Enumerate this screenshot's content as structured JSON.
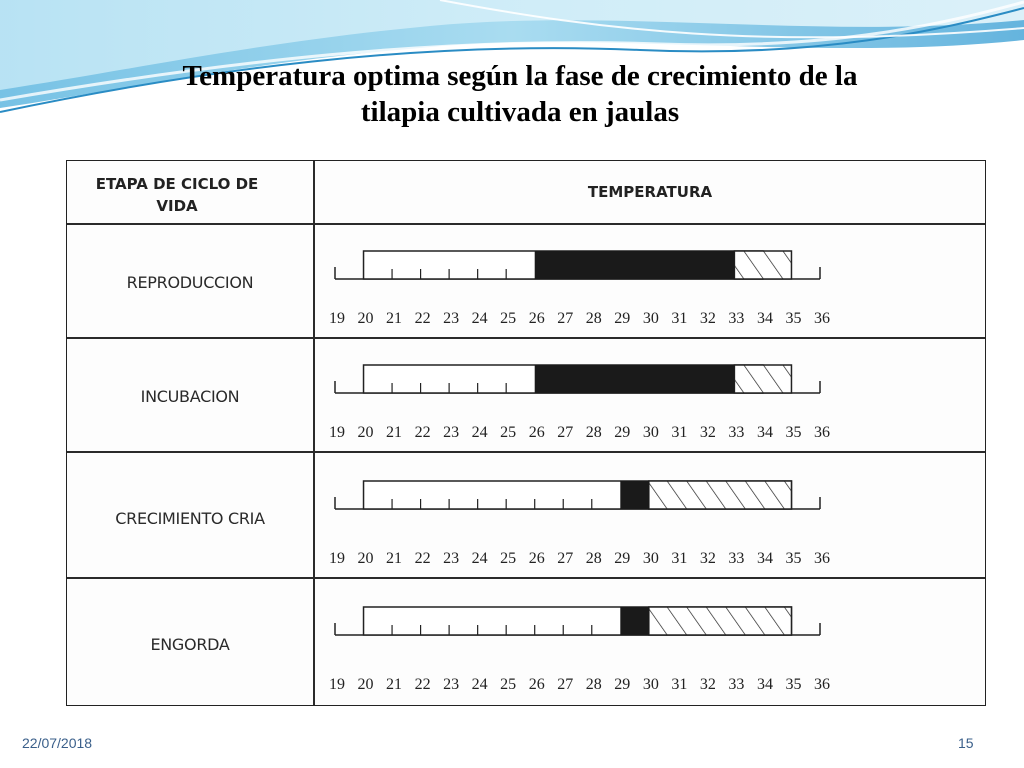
{
  "slide": {
    "title_line1": "Temperatura optima según la fase de crecimiento de la",
    "title_line2": "tilapia cultivada en jaulas",
    "date": "22/07/2018",
    "page_number": "15"
  },
  "table": {
    "col_stage_header": "ETAPA DE CICLO DE VIDA",
    "col_stage_header_line1": "ETAPA DE CICLO DE",
    "col_stage_header_line2": "VIDA",
    "col_temp_header": "TEMPERATURA",
    "scale": [
      19,
      20,
      21,
      22,
      23,
      24,
      25,
      26,
      27,
      28,
      29,
      30,
      31,
      32,
      33,
      34,
      35,
      36
    ],
    "legend_colors": {
      "optimal": "#1a1a1a",
      "tolerable": "#ffffff",
      "hatched": "#ffffff"
    },
    "rows": [
      {
        "stage": "REPRODUCCION",
        "range": [
          20,
          34
        ],
        "optimal": [
          26,
          33
        ],
        "hatched": [
          33,
          35
        ]
      },
      {
        "stage": "INCUBACION",
        "range": [
          20,
          34
        ],
        "optimal": [
          26,
          33
        ],
        "hatched": [
          33,
          35
        ]
      },
      {
        "stage": "CRECIMIENTO CRIA",
        "range": [
          20,
          35
        ],
        "optimal": [
          29,
          30
        ],
        "hatched": [
          30,
          35
        ]
      },
      {
        "stage": "ENGORDA",
        "range": [
          20,
          35
        ],
        "optimal": [
          29,
          30
        ],
        "hatched": [
          30,
          35
        ]
      }
    ]
  },
  "theme": {
    "accent": "#3a8fc8",
    "footer_color": "#3a5f8a"
  }
}
